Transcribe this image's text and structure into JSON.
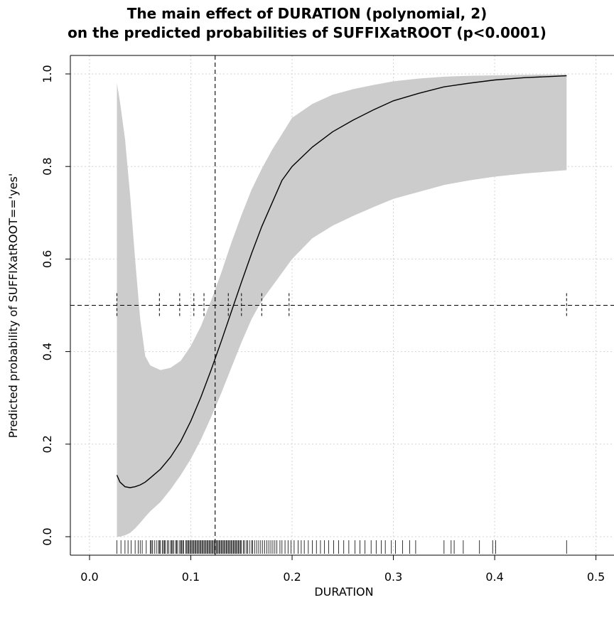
{
  "chart_data": {
    "type": "line",
    "title_line1": "The main effect of DURATION (polynomial, 2)",
    "title_line2": "on the predicted probabilities of SUFFIXatROOT (p<0.0001)",
    "xlabel": "DURATION",
    "ylabel": "Predicted probability of SUFFIXatROOT=='yes'",
    "xlim": [
      0.0,
      0.5
    ],
    "ylim": [
      0.0,
      1.0
    ],
    "x_ticks": [
      0.0,
      0.1,
      0.2,
      0.3,
      0.4,
      0.5
    ],
    "x_tick_labels": [
      "0.0",
      "0.1",
      "0.2",
      "0.3",
      "0.4",
      "0.5"
    ],
    "y_ticks": [
      0.0,
      0.2,
      0.4,
      0.6,
      0.8,
      1.0
    ],
    "y_tick_labels": [
      "0.0",
      "0.2",
      "0.4",
      "0.6",
      "0.8",
      "1.0"
    ],
    "grid": true,
    "series": [
      {
        "x": [
          0.027,
          0.03,
          0.035,
          0.04,
          0.045,
          0.05,
          0.055,
          0.06,
          0.07,
          0.08,
          0.09,
          0.1,
          0.11,
          0.12,
          0.13,
          0.14,
          0.15,
          0.16,
          0.17,
          0.18,
          0.19,
          0.2,
          0.22,
          0.24,
          0.26,
          0.28,
          0.3,
          0.325,
          0.35,
          0.375,
          0.4,
          0.43,
          0.471
        ],
        "values": [
          0.133,
          0.118,
          0.108,
          0.106,
          0.108,
          0.112,
          0.118,
          0.127,
          0.146,
          0.172,
          0.206,
          0.25,
          0.302,
          0.36,
          0.422,
          0.486,
          0.55,
          0.612,
          0.67,
          0.72,
          0.77,
          0.8,
          0.842,
          0.875,
          0.9,
          0.922,
          0.942,
          0.958,
          0.972,
          0.98,
          0.987,
          0.992,
          0.996
        ],
        "lower": [
          0.0,
          0.0,
          0.003,
          0.008,
          0.018,
          0.03,
          0.043,
          0.055,
          0.075,
          0.102,
          0.133,
          0.168,
          0.21,
          0.258,
          0.31,
          0.365,
          0.42,
          0.47,
          0.51,
          0.54,
          0.57,
          0.6,
          0.645,
          0.672,
          0.693,
          0.712,
          0.73,
          0.745,
          0.76,
          0.77,
          0.778,
          0.785,
          0.792
        ],
        "upper": [
          0.98,
          0.94,
          0.86,
          0.74,
          0.6,
          0.47,
          0.39,
          0.37,
          0.36,
          0.365,
          0.38,
          0.412,
          0.455,
          0.51,
          0.57,
          0.635,
          0.695,
          0.75,
          0.795,
          0.835,
          0.87,
          0.905,
          0.935,
          0.955,
          0.967,
          0.976,
          0.984,
          0.99,
          0.994,
          0.996,
          0.997,
          0.998,
          0.999
        ]
      }
    ],
    "reference_lines": {
      "x": 0.124,
      "y": 0.5
    },
    "threshold_ticks_x": [
      0.027,
      0.069,
      0.089,
      0.103,
      0.113,
      0.137,
      0.15,
      0.17,
      0.197,
      0.471
    ],
    "rug_x": [
      0.027,
      0.031,
      0.035,
      0.038,
      0.041,
      0.045,
      0.048,
      0.05,
      0.052,
      0.056,
      0.06,
      0.061,
      0.062,
      0.064,
      0.066,
      0.068,
      0.069,
      0.07,
      0.072,
      0.073,
      0.074,
      0.075,
      0.077,
      0.078,
      0.08,
      0.081,
      0.082,
      0.083,
      0.085,
      0.086,
      0.087,
      0.089,
      0.09,
      0.091,
      0.092,
      0.093,
      0.095,
      0.096,
      0.097,
      0.098,
      0.099,
      0.1,
      0.101,
      0.102,
      0.103,
      0.104,
      0.105,
      0.106,
      0.107,
      0.108,
      0.109,
      0.11,
      0.111,
      0.112,
      0.113,
      0.114,
      0.115,
      0.116,
      0.117,
      0.118,
      0.119,
      0.12,
      0.121,
      0.122,
      0.123,
      0.124,
      0.125,
      0.126,
      0.127,
      0.128,
      0.129,
      0.13,
      0.131,
      0.132,
      0.133,
      0.134,
      0.135,
      0.136,
      0.137,
      0.138,
      0.139,
      0.14,
      0.141,
      0.142,
      0.143,
      0.144,
      0.145,
      0.146,
      0.147,
      0.148,
      0.149,
      0.15,
      0.152,
      0.153,
      0.155,
      0.156,
      0.158,
      0.16,
      0.161,
      0.163,
      0.165,
      0.167,
      0.169,
      0.171,
      0.173,
      0.175,
      0.177,
      0.179,
      0.181,
      0.183,
      0.185,
      0.188,
      0.19,
      0.193,
      0.196,
      0.199,
      0.202,
      0.206,
      0.209,
      0.212,
      0.216,
      0.22,
      0.224,
      0.228,
      0.232,
      0.236,
      0.241,
      0.246,
      0.251,
      0.256,
      0.262,
      0.267,
      0.272,
      0.278,
      0.283,
      0.288,
      0.292,
      0.298,
      0.302,
      0.309,
      0.316,
      0.322,
      0.35,
      0.357,
      0.36,
      0.369,
      0.385,
      0.398,
      0.401,
      0.471
    ]
  }
}
